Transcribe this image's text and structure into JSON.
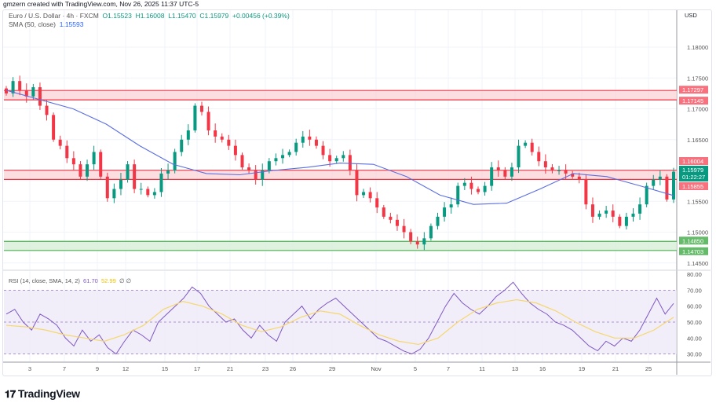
{
  "credit": "gmzern created with TradingView.com, Nov 26, 2025 11:37 UTC-5",
  "legend": {
    "symbol": "Euro / U.S. Dollar · 4h · FXCM",
    "open": "O1.15523",
    "high": "H1.16008",
    "low": "L1.15470",
    "close": "C1.15979",
    "change": "+0.00456 (+0.39%)",
    "sma_label": "SMA (50, close)",
    "sma_value": "1.15593",
    "rsi_label": "RSI (14, close, SMA, 14, 2)",
    "rsi_value": "61.70",
    "rsi_ma_value": "52.99",
    "rsi_extra": "∅ ∅"
  },
  "currency": "USD",
  "logo": "TradingView",
  "colors": {
    "up": "#089981",
    "down": "#f23645",
    "sma": "#5b6ee1",
    "rsi": "#7e57c2",
    "rsi_ma": "#f5d76e",
    "zone_red": "#f23645",
    "zone_green": "#4caf50"
  },
  "chart_data": [
    {
      "type": "candlestick",
      "price_axis": {
        "ticks": [
          "1.18000",
          "1.17500",
          "1.17000",
          "1.16500",
          "1.15500",
          "1.15000",
          "1.14500"
        ],
        "range": [
          1.1435,
          1.1865
        ]
      },
      "x_ticks": [
        "3",
        "7",
        "9",
        "12",
        "15",
        "17",
        "21",
        "23",
        "26",
        "29",
        "Nov",
        "5",
        "7",
        "11",
        "13",
        "16",
        "19",
        "21",
        "25"
      ],
      "closes": [
        1.1725,
        1.1745,
        1.173,
        1.172,
        1.1735,
        1.1705,
        1.169,
        1.165,
        1.164,
        1.162,
        1.161,
        1.159,
        1.161,
        1.163,
        1.159,
        1.1555,
        1.157,
        1.1585,
        1.161,
        1.157,
        1.157,
        1.156,
        1.1565,
        1.1595,
        1.16,
        1.163,
        1.165,
        1.1665,
        1.1705,
        1.1695,
        1.1665,
        1.1655,
        1.165,
        1.164,
        1.1625,
        1.1605,
        1.16,
        1.1585,
        1.16,
        1.1615,
        1.162,
        1.1625,
        1.163,
        1.1645,
        1.1655,
        1.165,
        1.164,
        1.1625,
        1.1615,
        1.162,
        1.1625,
        1.16,
        1.156,
        1.1565,
        1.1555,
        1.154,
        1.1525,
        1.152,
        1.151,
        1.15,
        1.1485,
        1.148,
        1.149,
        1.151,
        1.1525,
        1.154,
        1.1545,
        1.1575,
        1.158,
        1.157,
        1.1565,
        1.1575,
        1.1605,
        1.16,
        1.159,
        1.1605,
        1.164,
        1.1645,
        1.163,
        1.1615,
        1.1605,
        1.16,
        1.16,
        1.1595,
        1.159,
        1.1585,
        1.1545,
        1.1525,
        1.153,
        1.1535,
        1.1525,
        1.151,
        1.1525,
        1.153,
        1.1545,
        1.1575,
        1.1585,
        1.159,
        1.1553,
        1.15979
      ],
      "sma_50": [
        1.173,
        1.1715,
        1.17,
        1.1675,
        1.164,
        1.161,
        1.1595,
        1.1593,
        1.16,
        1.1605,
        1.1612,
        1.161,
        1.159,
        1.156,
        1.1545,
        1.1547,
        1.157,
        1.1595,
        1.159,
        1.1575,
        1.15593
      ],
      "zones": [
        {
          "color": "red",
          "top": 1.17297,
          "bottom": 1.17145,
          "labels": [
            "1.17297",
            "1.17145"
          ]
        },
        {
          "color": "red",
          "top": 1.16004,
          "bottom": 1.15855,
          "labels": [
            "1.16004",
            "1.15855"
          ]
        },
        {
          "color": "green",
          "top": 1.1485,
          "bottom": 1.14703,
          "labels": [
            "1.14850",
            "1.14703"
          ]
        }
      ],
      "last_price": {
        "value": "1.15979",
        "countdown": "01:22:27"
      }
    },
    {
      "type": "line",
      "name": "RSI",
      "y_ticks": [
        "80.00",
        "70.00",
        "60.00",
        "50.00",
        "40.00",
        "30.00"
      ],
      "ylim": [
        25,
        82
      ],
      "bands": [
        30,
        50,
        70
      ],
      "rsi": [
        55,
        58,
        50,
        45,
        55,
        52,
        48,
        40,
        35,
        45,
        38,
        42,
        34,
        30,
        38,
        45,
        42,
        38,
        50,
        55,
        60,
        65,
        72,
        68,
        60,
        55,
        50,
        52,
        45,
        40,
        48,
        42,
        38,
        50,
        55,
        60,
        52,
        58,
        62,
        65,
        60,
        55,
        50,
        45,
        40,
        38,
        35,
        32,
        30,
        33,
        40,
        50,
        60,
        68,
        62,
        58,
        55,
        60,
        66,
        70,
        75,
        68,
        62,
        58,
        55,
        50,
        48,
        45,
        40,
        35,
        32,
        38,
        35,
        40,
        38,
        45,
        55,
        65,
        55,
        61.7
      ],
      "rsi_ma": [
        48,
        47,
        45,
        42,
        40,
        38,
        42,
        48,
        58,
        63,
        60,
        55,
        48,
        44,
        47,
        53,
        57,
        55,
        48,
        42,
        38,
        36,
        40,
        50,
        58,
        62,
        64,
        62,
        57,
        50,
        44,
        40,
        40,
        45,
        52.99
      ]
    }
  ]
}
